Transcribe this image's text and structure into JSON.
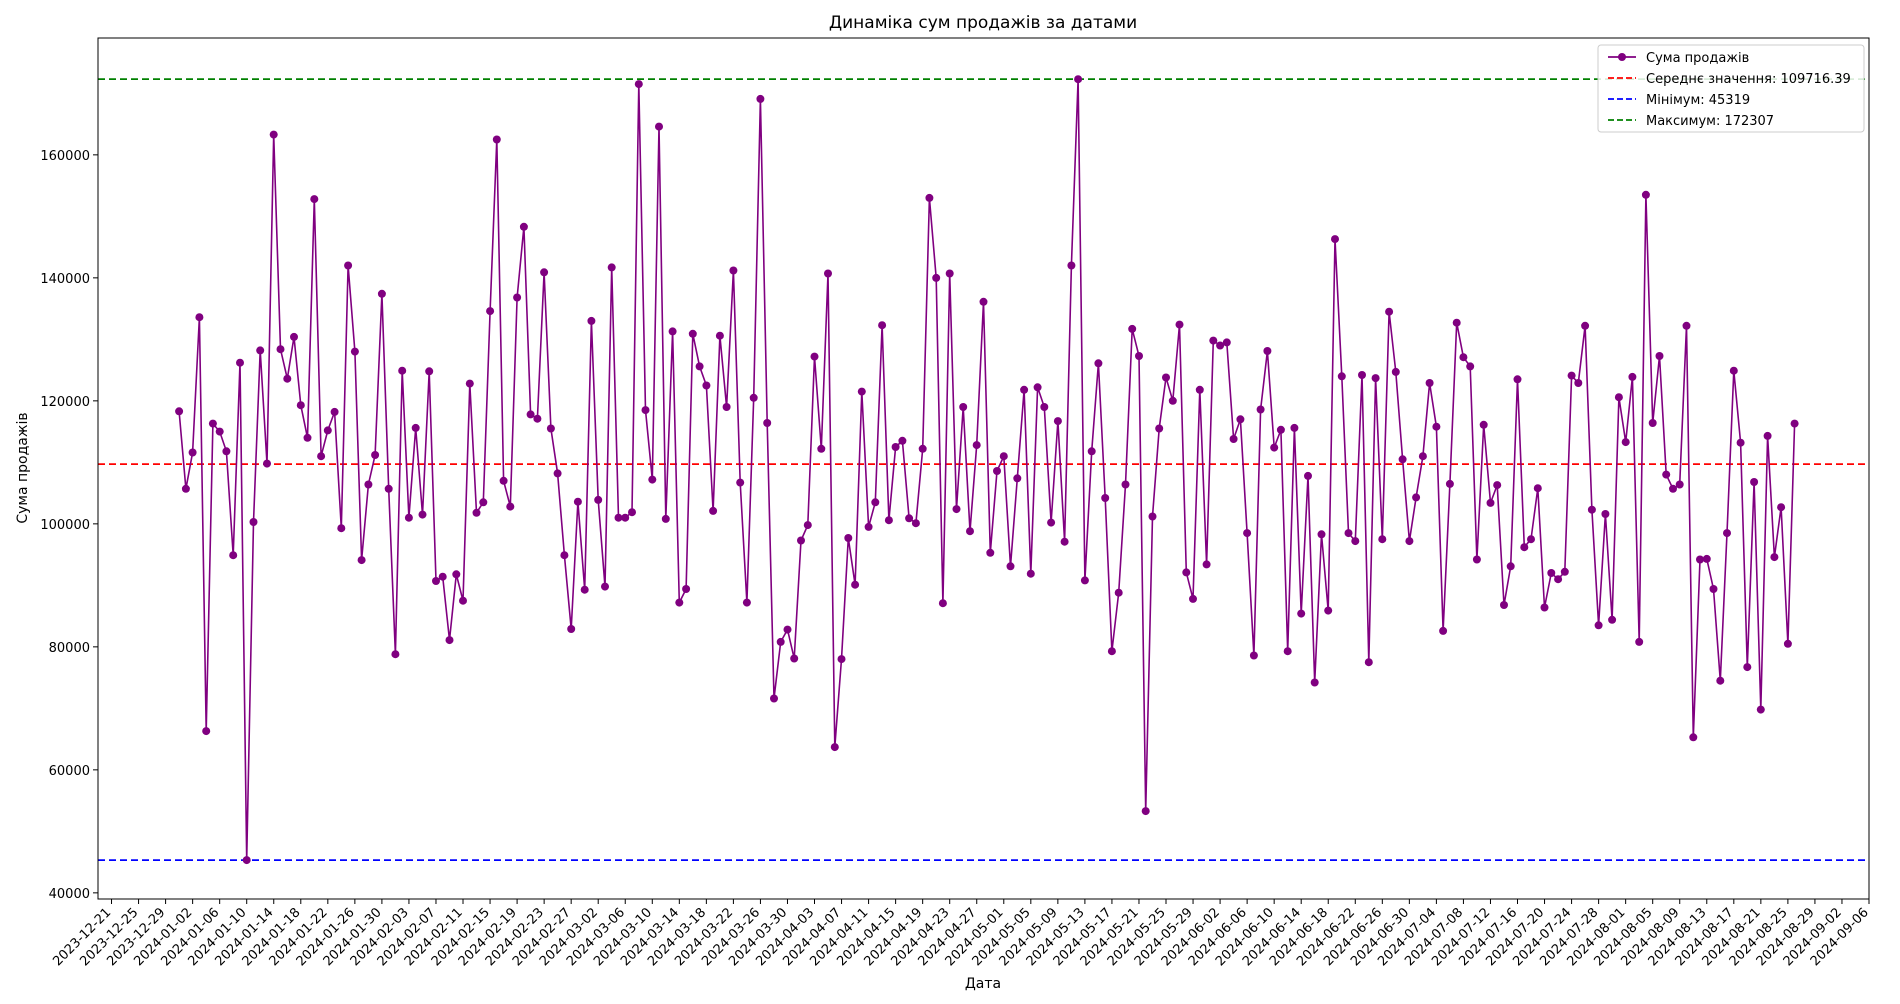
{
  "chart_data": {
    "type": "line",
    "title": "Динаміка сум продажів за датами",
    "xlabel": "Дата",
    "ylabel": "Сума продажів",
    "x_tick_labels": [
      "2023-12-21",
      "2023-12-25",
      "2023-12-29",
      "2024-01-02",
      "2024-01-06",
      "2024-01-10",
      "2024-01-14",
      "2024-01-18",
      "2024-01-22",
      "2024-01-26",
      "2024-01-30",
      "2024-02-03",
      "2024-02-07",
      "2024-02-11",
      "2024-02-15",
      "2024-02-19",
      "2024-02-23",
      "2024-02-27",
      "2024-03-02",
      "2024-03-06",
      "2024-03-10",
      "2024-03-14",
      "2024-03-18",
      "2024-03-22",
      "2024-03-26",
      "2024-03-30",
      "2024-04-03",
      "2024-04-07",
      "2024-04-11",
      "2024-04-15",
      "2024-04-19",
      "2024-04-23",
      "2024-04-27",
      "2024-05-01",
      "2024-05-05",
      "2024-05-09",
      "2024-05-13",
      "2024-05-17",
      "2024-05-21",
      "2024-05-25",
      "2024-05-29",
      "2024-06-02",
      "2024-06-06",
      "2024-06-10",
      "2024-06-14",
      "2024-06-18",
      "2024-06-22",
      "2024-06-26",
      "2024-06-30",
      "2024-07-04",
      "2024-07-08",
      "2024-07-12",
      "2024-07-16",
      "2024-07-20",
      "2024-07-24",
      "2024-07-28",
      "2024-08-01",
      "2024-08-05",
      "2024-08-09",
      "2024-08-13",
      "2024-08-17",
      "2024-08-21",
      "2024-08-25",
      "2024-08-29",
      "2024-09-02",
      "2024-09-06"
    ],
    "y_ticks": [
      40000,
      60000,
      80000,
      100000,
      120000,
      140000,
      160000
    ],
    "ylim": [
      39000,
      179000
    ],
    "xlim": [
      "2023-12-19",
      "2024-09-06"
    ],
    "grid": false,
    "legend_position": "top-right",
    "series": [
      {
        "name": "Сума продажів",
        "color": "#800080",
        "marker": "circle",
        "x_start": "2023-12-31",
        "x_step_days": 1,
        "values": [
          118300,
          105700,
          111600,
          133600,
          66300,
          116300,
          115000,
          111800,
          94900,
          126200,
          45319,
          100300,
          128200,
          109800,
          163300,
          128400,
          123600,
          130400,
          119300,
          114000,
          152800,
          111000,
          115200,
          118200,
          99300,
          142000,
          128000,
          94100,
          106400,
          111200,
          137400,
          105700,
          78800,
          124900,
          101000,
          115600,
          101500,
          124800,
          90700,
          91400,
          81100,
          91800,
          87500,
          122800,
          101800,
          103500,
          134600,
          162500,
          107000,
          102800,
          136800,
          148300,
          117800,
          117100,
          140900,
          115500,
          108200,
          94900,
          82900,
          103600,
          89300,
          133000,
          103900,
          89800,
          141700,
          101000,
          101000,
          101900,
          171500,
          118500,
          107200,
          164600,
          100800,
          131300,
          87200,
          89400,
          130900,
          125600,
          122500,
          102100,
          130600,
          119000,
          141200,
          106700,
          87200,
          120500,
          169100,
          116400,
          71600,
          80800,
          82800,
          78100,
          97300,
          99800,
          127200,
          112200,
          140700,
          63700,
          78000,
          97700,
          90100,
          121500,
          99500,
          103500,
          132300,
          100600,
          112500,
          113500,
          100900,
          100100,
          112200,
          153000,
          140000,
          87100,
          140700,
          102400,
          119000,
          98800,
          112800,
          136100,
          95300,
          108600,
          111000,
          93100,
          107400,
          121800,
          91900,
          122200,
          119000,
          100200,
          116700,
          97100,
          142000,
          172307,
          90800,
          111800,
          126100,
          104200,
          79300,
          88800,
          106400,
          131700,
          127300,
          53300,
          101200,
          115500,
          123800,
          120000,
          132400,
          92100,
          87800,
          121800,
          93400,
          129800,
          129000,
          129500,
          113800,
          117000,
          98500,
          78600,
          118600,
          128100,
          112400,
          115300,
          79300,
          115600,
          85400,
          107800,
          74200,
          98300,
          85900,
          146300,
          124000,
          98500,
          97200,
          124200,
          77500,
          123700,
          97500,
          134500,
          124700,
          110500,
          97200,
          104300,
          111000,
          122900,
          115800,
          82600,
          106500,
          132700,
          127100,
          125600,
          94200,
          116100,
          103400,
          106300,
          86800,
          93100,
          123500,
          96200,
          97500,
          105800,
          86400,
          92000,
          91000,
          92200,
          124100,
          122900,
          132200,
          102300,
          83500,
          101600,
          84400,
          120600,
          113300,
          123900,
          80800,
          153500,
          116400,
          127300,
          108000,
          105700,
          106400,
          132200,
          65300,
          94200,
          94300,
          89400,
          74500,
          98500,
          124900,
          113200,
          76700,
          106800,
          69800,
          114300,
          94600,
          102700,
          80500,
          116300
        ]
      }
    ],
    "reference_lines": [
      {
        "label": "Середнє значення: 109716.39",
        "value": 109716.39,
        "color": "#ff0000",
        "style": "dashed"
      },
      {
        "label": "Мінімум: 45319",
        "value": 45319,
        "color": "#0000ff",
        "style": "dashed"
      },
      {
        "label": "Максимум: 172307",
        "value": 172307,
        "color": "#008000",
        "style": "dashed"
      }
    ]
  }
}
